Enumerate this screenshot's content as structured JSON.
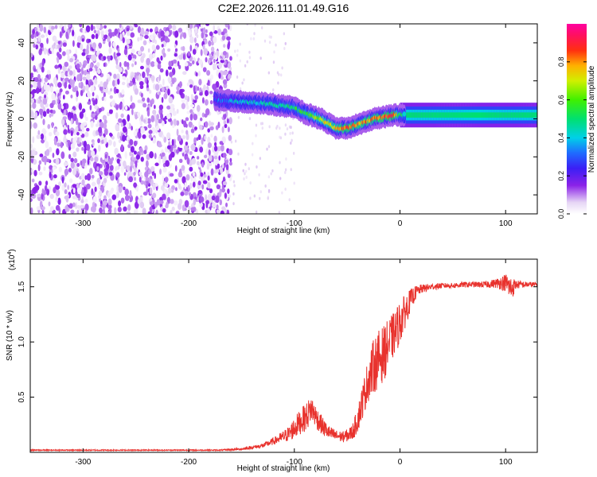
{
  "figure": {
    "title": "C2E2.2026.111.01.49.G16"
  },
  "chart_data": [
    {
      "type": "heatmap",
      "xlabel": "Height of straight line (km)",
      "ylabel": "Frequency (Hz)",
      "xlim": [
        -350,
        130
      ],
      "ylim": [
        -50,
        50
      ],
      "x_ticks": [
        -300,
        -200,
        -100,
        0,
        100
      ],
      "y_ticks": [
        -40,
        -20,
        0,
        20,
        40
      ],
      "colorbar": {
        "label": "Normalized spectral amplitude",
        "range": [
          0,
          1
        ],
        "ticks": [
          0.0,
          0.2,
          0.4,
          0.6,
          0.8
        ],
        "tick_labels": [
          "0.0",
          "0.2",
          "0.4",
          "0.6",
          "0.8"
        ],
        "colormap": "rainbow (white-purple-blue-cyan-green-yellow-red-magenta)"
      },
      "noise_region": {
        "x_range": [
          -350,
          -160
        ],
        "y_range": [
          -50,
          50
        ],
        "amplitude": "0.0-0.15"
      },
      "signal_ridge": {
        "x": [
          -175,
          -150,
          -125,
          -100,
          -90,
          -75,
          -60,
          -50,
          -45,
          -35,
          -25,
          -15,
          -5,
          0,
          25,
          50,
          75,
          100,
          130
        ],
        "y": [
          10,
          9,
          8,
          6,
          3,
          0,
          -5,
          -5,
          -4,
          -2,
          0,
          1,
          2,
          2,
          2,
          2,
          2,
          2,
          2
        ],
        "amplitude": [
          0.3,
          0.4,
          0.45,
          0.5,
          0.55,
          0.7,
          0.75,
          0.85,
          0.8,
          0.8,
          0.8,
          0.85,
          0.9,
          0.5,
          0.45,
          0.45,
          0.45,
          0.45,
          0.45
        ]
      },
      "grid": false,
      "legend": "colorbar right"
    },
    {
      "type": "line",
      "xlabel": "Height of straight line (km)",
      "ylabel": "SNR (10 * v/v)",
      "y_multiplier_label": "(x10",
      "y_multiplier_exp": "4",
      "y_multiplier_close": ")",
      "xlim": [
        -350,
        130
      ],
      "ylim": [
        0,
        1.75
      ],
      "x_ticks": [
        -300,
        -200,
        -100,
        0,
        100
      ],
      "y_ticks": [
        0.5,
        1.0,
        1.5
      ],
      "y_tick_labels": [
        "0.5",
        "1.0",
        "1.5"
      ],
      "series": [
        {
          "color": "#e8322d",
          "x": [
            -350,
            -300,
            -250,
            -200,
            -170,
            -150,
            -130,
            -115,
            -105,
            -100,
            -95,
            -88,
            -84,
            -78,
            -72,
            -66,
            -60,
            -54,
            -48,
            -44,
            -40,
            -35,
            -30,
            -25,
            -20,
            -15,
            -10,
            -5,
            0,
            5,
            10,
            15,
            20,
            30,
            40,
            50,
            60,
            70,
            80,
            90,
            100,
            105,
            110,
            120,
            130
          ],
          "y": [
            0.02,
            0.02,
            0.02,
            0.02,
            0.02,
            0.03,
            0.06,
            0.12,
            0.17,
            0.22,
            0.27,
            0.33,
            0.4,
            0.3,
            0.22,
            0.17,
            0.15,
            0.14,
            0.16,
            0.2,
            0.3,
            0.48,
            0.66,
            0.78,
            0.85,
            0.9,
            1.0,
            1.08,
            1.18,
            1.28,
            1.38,
            1.45,
            1.48,
            1.5,
            1.51,
            1.51,
            1.52,
            1.52,
            1.52,
            1.53,
            1.54,
            1.48,
            1.52,
            1.52,
            1.52
          ],
          "noise": [
            0.005,
            0.005,
            0.005,
            0.005,
            0.005,
            0.01,
            0.02,
            0.04,
            0.07,
            0.1,
            0.11,
            0.13,
            0.12,
            0.1,
            0.08,
            0.06,
            0.05,
            0.05,
            0.06,
            0.08,
            0.12,
            0.16,
            0.2,
            0.25,
            0.26,
            0.25,
            0.22,
            0.2,
            0.2,
            0.15,
            0.1,
            0.06,
            0.04,
            0.03,
            0.025,
            0.025,
            0.025,
            0.025,
            0.03,
            0.04,
            0.08,
            0.12,
            0.04,
            0.025,
            0.025
          ]
        }
      ],
      "grid": false
    }
  ]
}
